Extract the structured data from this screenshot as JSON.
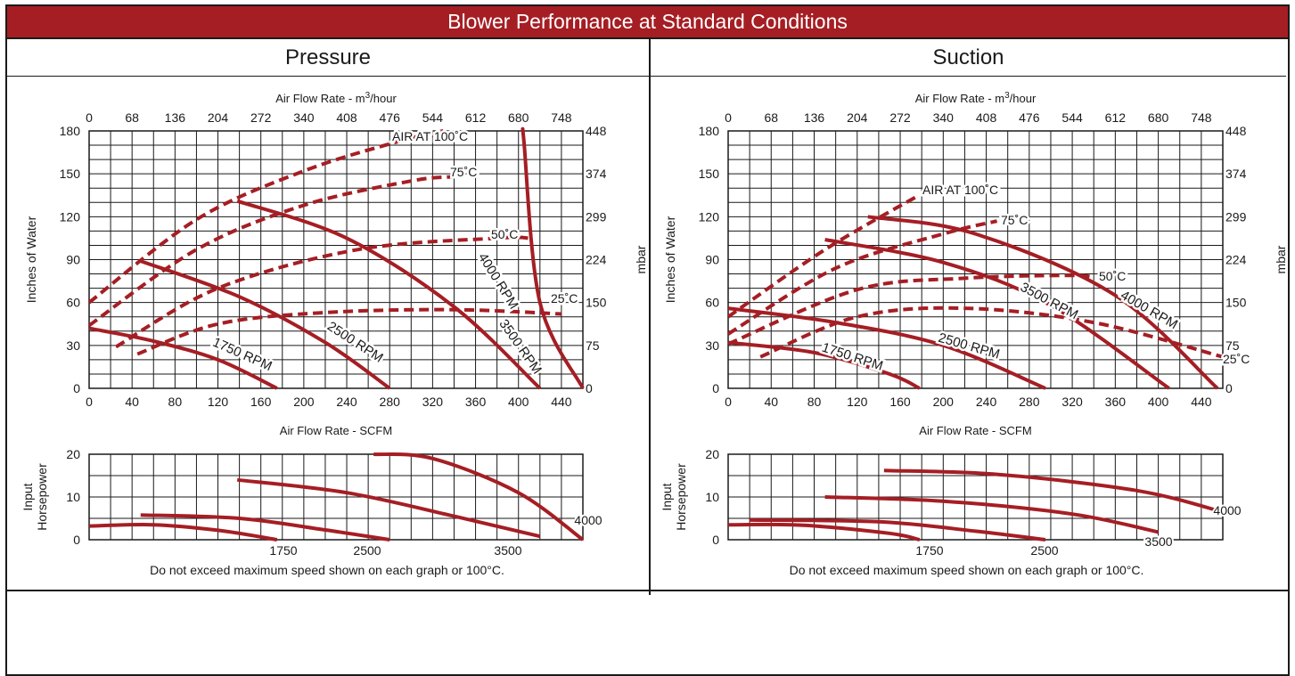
{
  "title": "Blower Performance at Standard Conditions",
  "note": "Do not exceed maximum speed shown on each graph or 100°C.",
  "colors": {
    "accent": "#a51e24",
    "curve": "#a51e24",
    "grid": "#1a1a1a"
  },
  "chart_data": [
    {
      "type": "line",
      "panel": "Pressure",
      "title": "Pressure",
      "xlabel": "Air Flow Rate - SCFM",
      "x2label": "Air Flow Rate - m³/hour",
      "ylabel": "Inches of Water",
      "y2label": "mbar",
      "xlim": [
        0,
        460
      ],
      "ylim": [
        0,
        180
      ],
      "x_ticks": [
        0,
        40,
        80,
        120,
        160,
        200,
        240,
        280,
        320,
        360,
        400,
        440
      ],
      "x2_ticks": [
        "0",
        "68",
        "136",
        "204",
        "272",
        "340",
        "408",
        "476",
        "544",
        "612",
        "680",
        "748"
      ],
      "y_ticks": [
        0,
        30,
        60,
        90,
        120,
        150,
        180
      ],
      "y2_ticks": [
        "0",
        "75",
        "150",
        "224",
        "299",
        "374",
        "448"
      ],
      "grid": true,
      "series": [
        {
          "name": "1750 RPM",
          "style": "solid",
          "points": [
            [
              0,
              42
            ],
            [
              60,
              33
            ],
            [
              120,
              20
            ],
            [
              175,
              0
            ]
          ]
        },
        {
          "name": "2500 RPM",
          "style": "solid",
          "points": [
            [
              48,
              89
            ],
            [
              140,
              64
            ],
            [
              220,
              32
            ],
            [
              280,
              0
            ]
          ]
        },
        {
          "name": "3500 RPM",
          "style": "solid",
          "points": [
            [
              138,
              131
            ],
            [
              240,
              105
            ],
            [
              340,
              57
            ],
            [
              420,
              0
            ]
          ]
        },
        {
          "name": "4000 RPM",
          "style": "solid",
          "points": [
            [
              405,
              173
            ],
            [
              405,
              173
            ],
            [
              420,
              60
            ],
            [
              460,
              0
            ]
          ]
        },
        {
          "name": "AIR AT 100°C",
          "style": "dashed",
          "points": [
            [
              0,
              60
            ],
            [
              100,
              118
            ],
            [
              200,
              152
            ],
            [
              290,
              173
            ],
            [
              330,
              180
            ]
          ]
        },
        {
          "name": "75°C",
          "style": "dashed",
          "points": [
            [
              0,
              44
            ],
            [
              100,
              97
            ],
            [
              200,
              128
            ],
            [
              300,
              145
            ],
            [
              340,
              148
            ]
          ]
        },
        {
          "name": "50°C",
          "style": "dashed",
          "points": [
            [
              25,
              29
            ],
            [
              120,
              70
            ],
            [
              250,
              97
            ],
            [
              380,
              105
            ],
            [
              410,
              105
            ]
          ]
        },
        {
          "name": "25°C",
          "style": "dashed",
          "points": [
            [
              45,
              24
            ],
            [
              120,
              45
            ],
            [
              220,
              53
            ],
            [
              340,
              55
            ],
            [
              440,
              52
            ]
          ]
        }
      ],
      "rpm_labels": [
        "1750 RPM",
        "2500 RPM",
        "3500 RPM",
        "4000 RPM"
      ],
      "temp_labels": [
        "AIR AT 100˚C",
        "75˚C",
        "50˚C",
        "25˚C"
      ],
      "hp": {
        "ylabel_1": "Input",
        "ylabel_2": "Horsepower",
        "ylim": [
          0,
          20
        ],
        "y_ticks": [
          0,
          10,
          20
        ],
        "series": [
          {
            "name": "1750",
            "points": [
              [
                0,
                3.2
              ],
              [
                60,
                3.5
              ],
              [
                120,
                2.2
              ],
              [
                175,
                0
              ]
            ]
          },
          {
            "name": "2500",
            "points": [
              [
                48,
                5.8
              ],
              [
                140,
                5
              ],
              [
                220,
                2.3
              ],
              [
                280,
                0
              ]
            ]
          },
          {
            "name": "3500",
            "points": [
              [
                138,
                14
              ],
              [
                240,
                11
              ],
              [
                340,
                5.5
              ],
              [
                420,
                0.8
              ]
            ]
          },
          {
            "name": "4000",
            "points": [
              [
                265,
                20
              ],
              [
                320,
                19
              ],
              [
                400,
                11
              ],
              [
                460,
                0
              ]
            ]
          }
        ],
        "labels": [
          "1750",
          "2500",
          "3500",
          "4000"
        ]
      }
    },
    {
      "type": "line",
      "panel": "Suction",
      "title": "Suction",
      "xlabel": "Air Flow Rate - SCFM",
      "x2label": "Air Flow Rate - m³/hour",
      "ylabel": "Inches of Water",
      "y2label": "mbar",
      "xlim": [
        0,
        460
      ],
      "ylim": [
        0,
        180
      ],
      "x_ticks": [
        0,
        40,
        80,
        120,
        160,
        200,
        240,
        280,
        320,
        360,
        400,
        440
      ],
      "x2_ticks": [
        "0",
        "68",
        "136",
        "204",
        "272",
        "340",
        "408",
        "476",
        "544",
        "612",
        "680",
        "748"
      ],
      "y_ticks": [
        0,
        30,
        60,
        90,
        120,
        150,
        180
      ],
      "y2_ticks": [
        "0",
        "75",
        "150",
        "224",
        "299",
        "374",
        "448"
      ],
      "grid": true,
      "series": [
        {
          "name": "1750 RPM",
          "style": "solid",
          "points": [
            [
              0,
              32
            ],
            [
              80,
              25
            ],
            [
              150,
              10
            ],
            [
              178,
              0
            ]
          ]
        },
        {
          "name": "2500 RPM",
          "style": "solid",
          "points": [
            [
              0,
              56
            ],
            [
              100,
              46
            ],
            [
              200,
              30
            ],
            [
              295,
              0
            ]
          ]
        },
        {
          "name": "3500 RPM",
          "style": "solid",
          "points": [
            [
              90,
              104
            ],
            [
              200,
              88
            ],
            [
              300,
              58
            ],
            [
              410,
              0
            ]
          ]
        },
        {
          "name": "4000 RPM",
          "style": "solid",
          "points": [
            [
              130,
              120
            ],
            [
              230,
              108
            ],
            [
              360,
              65
            ],
            [
              455,
              0
            ]
          ]
        },
        {
          "name": "AIR AT 100°C",
          "style": "dashed",
          "points": [
            [
              0,
              50
            ],
            [
              90,
              97
            ],
            [
              175,
              134
            ]
          ]
        },
        {
          "name": "75°C",
          "style": "dashed",
          "points": [
            [
              0,
              38
            ],
            [
              100,
              84
            ],
            [
              200,
              108
            ],
            [
              250,
              117
            ]
          ]
        },
        {
          "name": "50°C",
          "style": "dashed",
          "points": [
            [
              0,
              31
            ],
            [
              120,
              69
            ],
            [
              220,
              77
            ],
            [
              320,
              79
            ],
            [
              340,
              77
            ]
          ]
        },
        {
          "name": "25°C",
          "style": "dashed",
          "points": [
            [
              30,
              22
            ],
            [
              120,
              50
            ],
            [
              220,
              56
            ],
            [
              340,
              46
            ],
            [
              460,
              22
            ]
          ]
        }
      ],
      "rpm_labels": [
        "1750 RPM",
        "2500 RPM",
        "3500 RPM",
        "4000 RPM"
      ],
      "temp_labels": [
        "AIR AT 100˚C",
        "75˚C",
        "50˚C",
        "25˚C"
      ],
      "hp": {
        "ylabel_1": "Input",
        "ylabel_2": "Horsepower",
        "ylim": [
          0,
          20
        ],
        "y_ticks": [
          0,
          10,
          20
        ],
        "series": [
          {
            "name": "1750",
            "points": [
              [
                0,
                3.5
              ],
              [
                70,
                3.4
              ],
              [
                150,
                1.5
              ],
              [
                178,
                0
              ]
            ]
          },
          {
            "name": "2500",
            "points": [
              [
                20,
                4.6
              ],
              [
                140,
                4.2
              ],
              [
                230,
                2
              ],
              [
                295,
                0
              ]
            ]
          },
          {
            "name": "3500",
            "points": [
              [
                90,
                10
              ],
              [
                200,
                9
              ],
              [
                320,
                6
              ],
              [
                400,
                1.8
              ]
            ]
          },
          {
            "name": "4000",
            "points": [
              [
                145,
                16.2
              ],
              [
                250,
                15.3
              ],
              [
                380,
                11.5
              ],
              [
                460,
                6.5
              ]
            ]
          }
        ],
        "labels": [
          "1750",
          "2500",
          "3500",
          "4000"
        ]
      }
    }
  ]
}
